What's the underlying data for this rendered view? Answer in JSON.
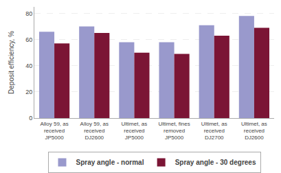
{
  "chart_data": {
    "type": "bar",
    "categories": [
      "Alloy 59, as\nreceived\nJP5000",
      "Alloy 59, as\nreceived\nDJ2600",
      "Ultimet, as\nreceived\nJP5000",
      "Ultimet, fines\nremoved\nJP5000",
      "Ultimet, as\nreceived\nDJ2700",
      "Ultimet, as\nreceived\nDJ2600"
    ],
    "series": [
      {
        "name": "Spray angle - normal",
        "color": "#9999cc",
        "values": [
          66,
          70,
          58,
          58,
          71,
          78
        ]
      },
      {
        "name": "Spray angle - 30 degrees",
        "color": "#7b1535",
        "values": [
          57,
          65,
          50,
          49,
          63,
          69
        ]
      }
    ],
    "ylabel": "Deposit efficiency, %",
    "ylim": [
      0,
      85
    ],
    "yticks": [
      0,
      20,
      40,
      60,
      80
    ],
    "grid": true,
    "legend": "bottom"
  }
}
